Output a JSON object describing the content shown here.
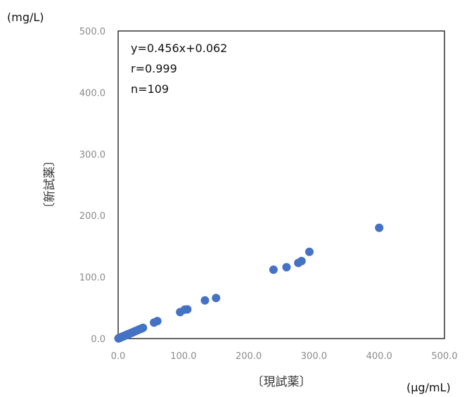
{
  "chart_data": {
    "type": "scatter",
    "title": "",
    "xlabel": "〔現試薬〕",
    "ylabel": "〔新試薬〕",
    "x_unit": "(μg/mL)",
    "y_unit": "(mg/L)",
    "xlim": [
      0,
      500
    ],
    "ylim": [
      0,
      500
    ],
    "x_ticks": [
      "0.0",
      "100.0",
      "200.0",
      "300.0",
      "400.0",
      "500.0"
    ],
    "y_ticks": [
      "0.0",
      "100.0",
      "200.0",
      "300.0",
      "400.0",
      "500.0"
    ],
    "grid": false,
    "marker_color": "#4472C4",
    "annotations": [
      "y=0.456x+0.062",
      "r=0.999",
      "n=109"
    ],
    "points": [
      [
        0.5,
        0.3
      ],
      [
        1,
        0.6
      ],
      [
        1.5,
        0.8
      ],
      [
        2,
        1.0
      ],
      [
        2.5,
        1.3
      ],
      [
        3,
        1.5
      ],
      [
        4,
        2.0
      ],
      [
        5,
        2.4
      ],
      [
        6,
        2.8
      ],
      [
        7,
        3.3
      ],
      [
        8,
        3.8
      ],
      [
        9,
        4.2
      ],
      [
        10,
        4.6
      ],
      [
        11,
        5.1
      ],
      [
        12,
        5.6
      ],
      [
        13,
        6.0
      ],
      [
        14,
        6.5
      ],
      [
        15,
        7.0
      ],
      [
        16,
        7.4
      ],
      [
        18,
        8.3
      ],
      [
        20,
        9.2
      ],
      [
        22,
        10.1
      ],
      [
        24,
        11.0
      ],
      [
        26,
        12.0
      ],
      [
        28,
        12.8
      ],
      [
        30,
        13.8
      ],
      [
        32,
        14.7
      ],
      [
        34,
        15.6
      ],
      [
        36,
        16.5
      ],
      [
        38,
        17.4
      ],
      [
        55,
        26.0
      ],
      [
        60,
        28.5
      ],
      [
        95,
        43.0
      ],
      [
        102,
        47.0
      ],
      [
        106,
        47.5
      ],
      [
        133,
        62.0
      ],
      [
        150,
        66.0
      ],
      [
        238,
        112.0
      ],
      [
        258,
        116.0
      ],
      [
        276,
        123.0
      ],
      [
        281,
        126.0
      ],
      [
        293,
        141.0
      ],
      [
        400,
        180.0
      ]
    ]
  }
}
